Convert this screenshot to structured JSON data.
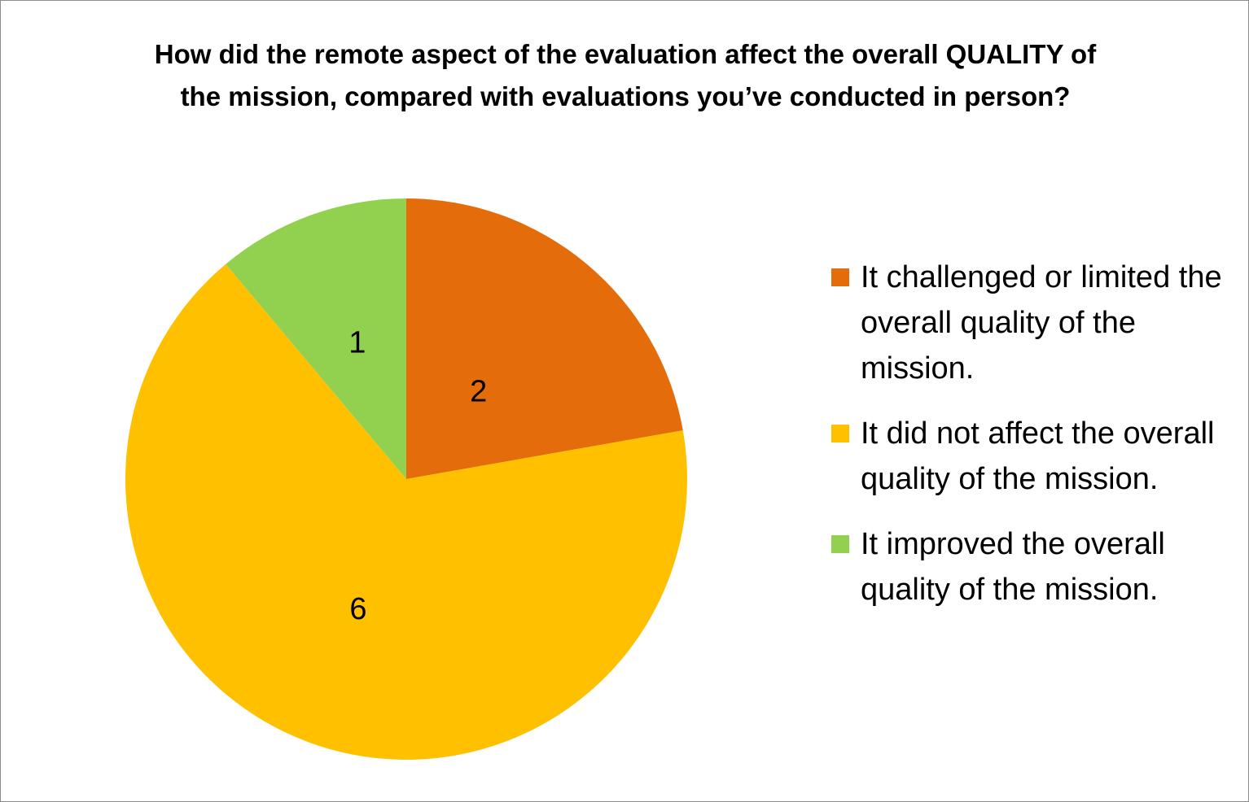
{
  "chart_data": {
    "type": "pie",
    "title": "How did the remote aspect of the evaluation affect the overall QUALITY of the mission, compared with evaluations you’ve conducted in person?",
    "categories": [
      "It challenged or limited the overall quality of the mission.",
      "It did not affect the overall quality of the mission.",
      "It improved the overall quality of the mission."
    ],
    "values": [
      2,
      6,
      1
    ],
    "data_labels": [
      "2",
      "6",
      "1"
    ],
    "colors": [
      "#e46c0a",
      "#ffc000",
      "#92d050"
    ],
    "legend_position": "right",
    "start_angle": "12 o'clock, clockwise"
  }
}
